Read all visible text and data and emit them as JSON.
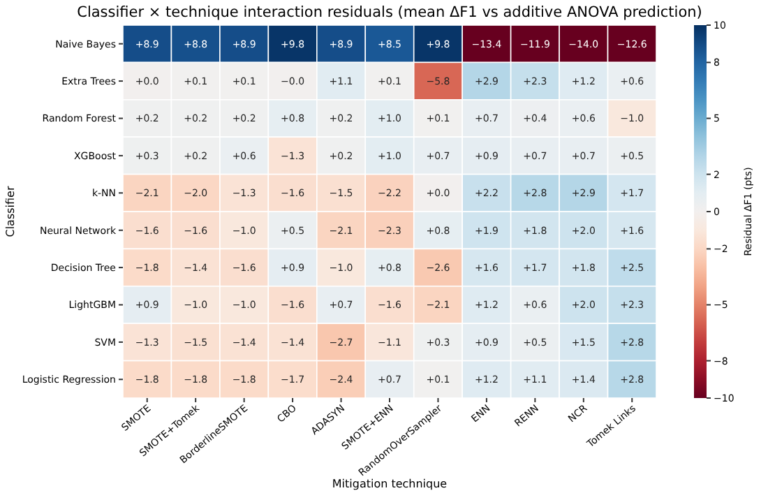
{
  "chart_data": {
    "type": "heatmap",
    "title": "Classifier × technique interaction residuals (mean ΔF1 vs additive ANOVA prediction)",
    "xlabel": "Mitigation technique",
    "ylabel": "Classifier",
    "clabel": "Residual ΔF1 (pts)",
    "categories": [
      "SMOTE",
      "SMOTE+Tomek",
      "BorderlineSMOTE",
      "CBO",
      "ADASYN",
      "SMOTE+ENN",
      "RandomOverSampler",
      "ENN",
      "RENN",
      "NCR",
      "Tomek Links"
    ],
    "y_categories": [
      "Naive Bayes",
      "Extra Trees",
      "Random Forest",
      "XGBoost",
      "k-NN",
      "Neural Network",
      "Decision Tree",
      "LightGBM",
      "SVM",
      "Logistic Regression"
    ],
    "cells": [
      [
        8.9,
        8.8,
        8.9,
        9.8,
        8.9,
        8.5,
        9.8,
        -13.4,
        -11.9,
        -14.0,
        -12.6
      ],
      [
        0.0,
        0.1,
        0.1,
        0.0,
        1.1,
        0.1,
        -5.8,
        2.9,
        2.3,
        1.2,
        0.6
      ],
      [
        0.2,
        0.2,
        0.2,
        0.8,
        0.2,
        1.0,
        0.1,
        0.7,
        0.4,
        0.6,
        -1.0
      ],
      [
        0.3,
        0.2,
        0.6,
        -1.3,
        0.2,
        1.0,
        0.7,
        0.9,
        0.7,
        0.7,
        0.5
      ],
      [
        -2.1,
        -2.0,
        -1.3,
        -1.6,
        -1.5,
        -2.2,
        0.0,
        2.2,
        2.8,
        2.9,
        1.7
      ],
      [
        -1.6,
        -1.6,
        -1.0,
        0.5,
        -2.1,
        -2.3,
        0.8,
        1.9,
        1.8,
        2.0,
        1.6
      ],
      [
        -1.8,
        -1.4,
        -1.6,
        0.9,
        -1.0,
        0.8,
        -2.6,
        1.6,
        1.7,
        1.8,
        2.5
      ],
      [
        0.9,
        -1.0,
        -1.0,
        -1.6,
        0.7,
        -1.6,
        -2.1,
        1.2,
        0.6,
        2.0,
        2.3
      ],
      [
        -1.3,
        -1.5,
        -1.4,
        -1.4,
        -2.7,
        -1.1,
        0.3,
        0.9,
        0.5,
        1.5,
        2.8
      ],
      [
        -1.8,
        -1.8,
        -1.8,
        -1.7,
        -2.4,
        0.7,
        0.1,
        1.2,
        1.1,
        1.4,
        2.8
      ]
    ],
    "cell_labels": [
      [
        "+8.9",
        "+8.8",
        "+8.9",
        "+9.8",
        "+8.9",
        "+8.5",
        "+9.8",
        "−13.4",
        "−11.9",
        "−14.0",
        "−12.6"
      ],
      [
        "+0.0",
        "+0.1",
        "+0.1",
        "−0.0",
        "+1.1",
        "+0.1",
        "−5.8",
        "+2.9",
        "+2.3",
        "+1.2",
        "+0.6"
      ],
      [
        "+0.2",
        "+0.2",
        "+0.2",
        "+0.8",
        "+0.2",
        "+1.0",
        "+0.1",
        "+0.7",
        "+0.4",
        "+0.6",
        "−1.0"
      ],
      [
        "+0.3",
        "+0.2",
        "+0.6",
        "−1.3",
        "+0.2",
        "+1.0",
        "+0.7",
        "+0.9",
        "+0.7",
        "+0.7",
        "+0.5"
      ],
      [
        "−2.1",
        "−2.0",
        "−1.3",
        "−1.6",
        "−1.5",
        "−2.2",
        "+0.0",
        "+2.2",
        "+2.8",
        "+2.9",
        "+1.7"
      ],
      [
        "−1.6",
        "−1.6",
        "−1.0",
        "+0.5",
        "−2.1",
        "−2.3",
        "+0.8",
        "+1.9",
        "+1.8",
        "+2.0",
        "+1.6"
      ],
      [
        "−1.8",
        "−1.4",
        "−1.6",
        "+0.9",
        "−1.0",
        "+0.8",
        "−2.6",
        "+1.6",
        "+1.7",
        "+1.8",
        "+2.5"
      ],
      [
        "+0.9",
        "−1.0",
        "−1.0",
        "−1.6",
        "+0.7",
        "−1.6",
        "−2.1",
        "+1.2",
        "+0.6",
        "+2.0",
        "+2.3"
      ],
      [
        "−1.3",
        "−1.5",
        "−1.4",
        "−1.4",
        "−2.7",
        "−1.1",
        "+0.3",
        "+0.9",
        "+0.5",
        "+1.5",
        "+2.8"
      ],
      [
        "−1.8",
        "−1.8",
        "−1.8",
        "−1.7",
        "−2.4",
        "+0.7",
        "+0.1",
        "+1.2",
        "+1.1",
        "+1.4",
        "+2.8"
      ]
    ],
    "clim": [
      -10,
      10
    ],
    "cticks": [
      -10,
      -8,
      -5,
      -2,
      0,
      2,
      5,
      8,
      10
    ]
  }
}
